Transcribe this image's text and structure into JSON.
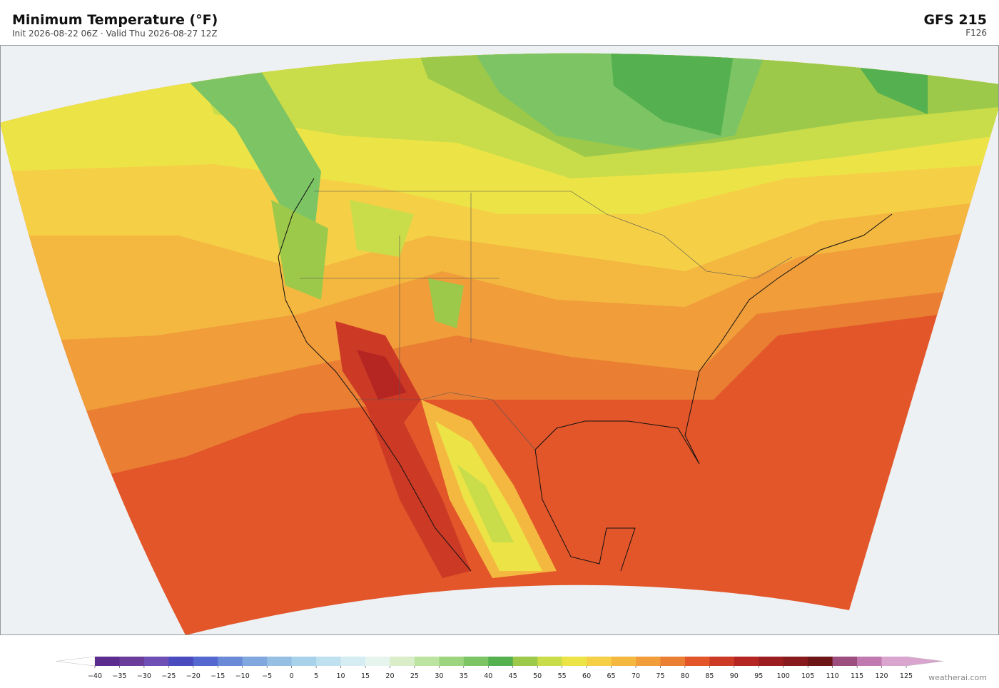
{
  "header": {
    "title": "Minimum Temperature  (°F)",
    "subtitle": "Init 2026-08-22 06Z  ·  Valid Thu 2026-08-27 12Z",
    "model": "GFS  215",
    "forecast_hour": "F126"
  },
  "colorbar": {
    "ticks": [
      {
        "value": -40,
        "label": "−40"
      },
      {
        "value": -35,
        "label": "−35"
      },
      {
        "value": -30,
        "label": "−30"
      },
      {
        "value": -25,
        "label": "−25"
      },
      {
        "value": -20,
        "label": "−20"
      },
      {
        "value": -15,
        "label": "−15"
      },
      {
        "value": -10,
        "label": "−10"
      },
      {
        "value": -5,
        "label": "−5"
      },
      0,
      5,
      10,
      15,
      20,
      25,
      30,
      35,
      40,
      45,
      50,
      55,
      60,
      65,
      70,
      75,
      80,
      85,
      90,
      95,
      100,
      105,
      110,
      115,
      120,
      125
    ],
    "colors": [
      "#5b2d8e",
      "#6a3d9a",
      "#6f4fb5",
      "#4b4bc0",
      "#5568d0",
      "#6a8ad8",
      "#80a8de",
      "#95bfe3",
      "#a8d2ea",
      "#bfe0ef",
      "#d4ecf2",
      "#e6f4ee",
      "#d8edc8",
      "#bde3a0",
      "#9dd57f",
      "#7cc464",
      "#55b050",
      "#9cc94a",
      "#c9dc4a",
      "#ece447",
      "#f5d046",
      "#f4b840",
      "#f09d3a",
      "#ea7f33",
      "#e2562a",
      "#cc3a26",
      "#b52623",
      "#9c1d1f",
      "#861a1c",
      "#6e1518",
      "#9c4f7f",
      "#c07aaf",
      "#d9a5cf"
    ]
  },
  "footer": {
    "credit": "weatherai.com"
  }
}
